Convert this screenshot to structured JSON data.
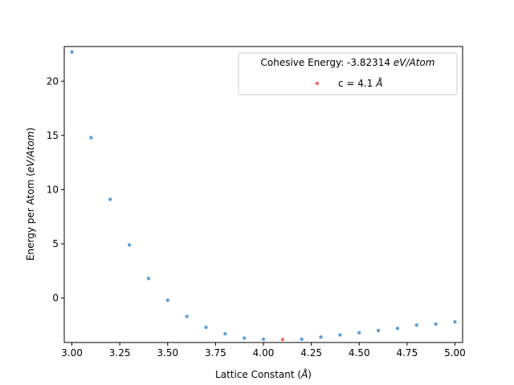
{
  "chart_data": {
    "type": "scatter",
    "xlabel": "Lattice Constant (Å)",
    "ylabel": "Energy per Atom (eV/Atom)",
    "xlim": [
      2.96,
      5.04
    ],
    "ylim": [
      -4.1,
      23.2
    ],
    "x_ticks": [
      3.0,
      3.25,
      3.5,
      3.75,
      4.0,
      4.25,
      4.5,
      4.75,
      5.0
    ],
    "x_tick_labels": [
      "3.00",
      "3.25",
      "3.50",
      "3.75",
      "4.00",
      "4.25",
      "4.50",
      "4.75",
      "5.00"
    ],
    "y_ticks": [
      0,
      5,
      10,
      15,
      20
    ],
    "y_tick_labels": [
      "0",
      "5",
      "10",
      "15",
      "20"
    ],
    "legend": {
      "title": "Cohesive Energy: -3.82314 eV/Atom",
      "position": "upper right",
      "entries": [
        {
          "label": "c = 4.1 Å",
          "color": "#f26b6b"
        }
      ]
    },
    "series": [
      {
        "color": "#5fa2d4",
        "x": [
          3.0,
          3.1,
          3.2,
          3.3,
          3.4,
          3.5,
          3.6,
          3.7,
          3.8,
          3.9,
          4.0,
          4.2,
          4.3,
          4.4,
          4.5,
          4.6,
          4.7,
          4.8,
          4.9,
          5.0
        ],
        "y": [
          22.7,
          14.8,
          9.1,
          4.9,
          1.8,
          -0.2,
          -1.7,
          -2.7,
          -3.3,
          -3.7,
          -3.8,
          -3.8,
          -3.6,
          -3.4,
          -3.2,
          -3.0,
          -2.8,
          -2.5,
          -2.4,
          -2.2
        ]
      },
      {
        "name": "c = 4.1 Å",
        "color": "#f26b6b",
        "x": [
          4.1
        ],
        "y": [
          -3.82314
        ]
      }
    ],
    "grid": false
  }
}
